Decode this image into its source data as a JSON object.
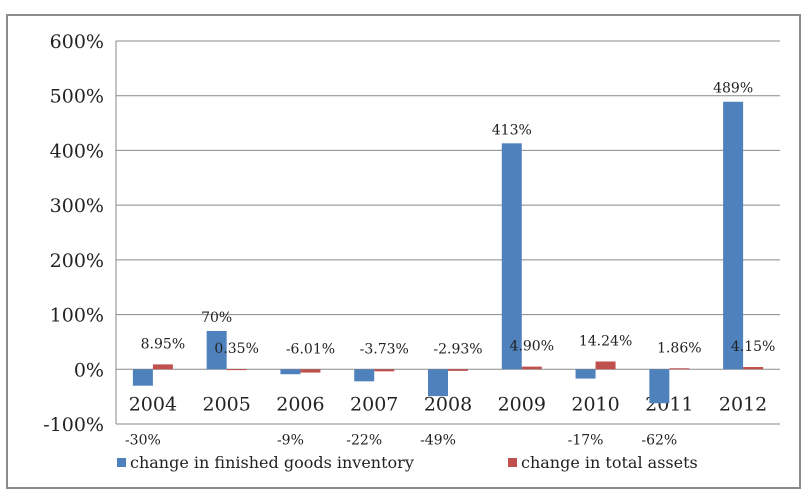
{
  "chart_data": {
    "type": "bar",
    "categories": [
      "2004",
      "2005",
      "2006",
      "2007",
      "2008",
      "2009",
      "2010",
      "2011",
      "2012"
    ],
    "series": [
      {
        "name": "change in finished goods inventory",
        "color": "#4f81bd",
        "values": [
          -30,
          70,
          -9,
          -22,
          -49,
          413,
          -17,
          -62,
          489
        ],
        "labels": [
          "-30%",
          "70%",
          "-9%",
          "-22%",
          "-49%",
          "413%",
          "-17%",
          "-62%",
          "489%"
        ]
      },
      {
        "name": "change in total assets",
        "color": "#c0504d",
        "values": [
          8.95,
          0.35,
          -6.01,
          -3.73,
          -2.93,
          4.9,
          14.24,
          1.86,
          4.15
        ],
        "labels": [
          "8.95%",
          "0.35%",
          "-6.01%",
          "-3.73%",
          "-2.93%",
          "4.90%",
          "14.24%",
          "1.86%",
          "4.15%"
        ]
      }
    ],
    "ylim": [
      -100,
      600
    ],
    "yticks": [
      -100,
      0,
      100,
      200,
      300,
      400,
      500,
      600
    ],
    "ytick_labels": [
      "-100%",
      "0%",
      "100%",
      "200%",
      "300%",
      "400%",
      "500%",
      "600%"
    ],
    "title": "",
    "xlabel": "",
    "ylabel": "",
    "grid": "horizontal",
    "legend_position": "bottom"
  }
}
